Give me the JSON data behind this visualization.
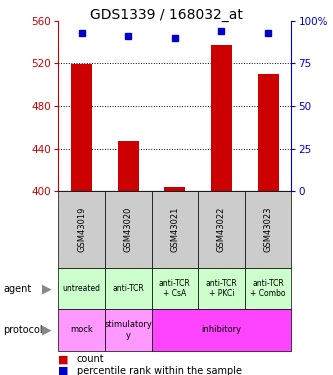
{
  "title": "GDS1339 / 168032_at",
  "samples": [
    "GSM43019",
    "GSM43020",
    "GSM43021",
    "GSM43022",
    "GSM43023"
  ],
  "count_values": [
    519,
    447,
    404,
    537,
    510
  ],
  "percentile_values": [
    93,
    91,
    90,
    94,
    93
  ],
  "count_baseline": 400,
  "ylim_left": [
    400,
    560
  ],
  "ylim_right": [
    0,
    100
  ],
  "yticks_left": [
    400,
    440,
    480,
    520,
    560
  ],
  "yticks_right": [
    0,
    25,
    50,
    75,
    100
  ],
  "bar_color": "#cc0000",
  "dot_color": "#0000cc",
  "agent_labels": [
    "untreated",
    "anti-TCR",
    "anti-TCR\n+ CsA",
    "anti-TCR\n+ PKCi",
    "anti-TCR\n+ Combo"
  ],
  "agent_bg": "#ccffcc",
  "protocol_defs": [
    [
      0,
      1,
      "mock",
      "#ff99ff"
    ],
    [
      1,
      2,
      "stimulatory\ny",
      "#ff99ff"
    ],
    [
      2,
      5,
      "inhibitory",
      "#ff44ff"
    ]
  ],
  "sample_bg": "#cccccc",
  "left_label_color": "#cc0000",
  "right_label_color": "#0000cc",
  "legend_count_color": "#cc0000",
  "legend_pct_color": "#0000cc",
  "grid_yticks": [
    440,
    480,
    520
  ],
  "left_sidebar_labels": [
    "agent",
    "protocol"
  ],
  "legend_labels": [
    "count",
    "percentile rank within the sample"
  ]
}
